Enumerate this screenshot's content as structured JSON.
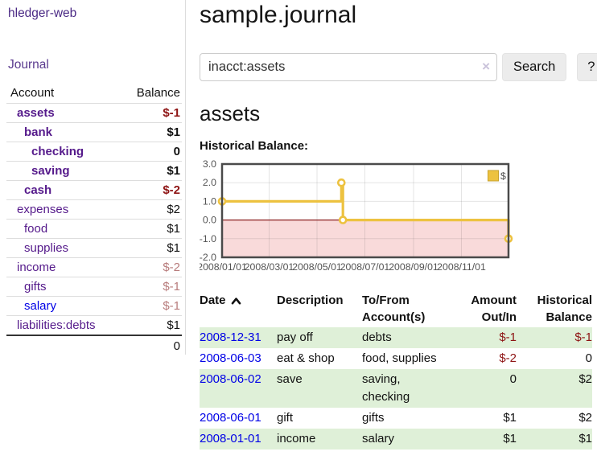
{
  "app": {
    "brand": "hledger-web"
  },
  "sidebar": {
    "journal_link": "Journal",
    "accounts": {
      "header_account": "Account",
      "header_balance": "Balance",
      "rows": [
        {
          "name": "assets",
          "indent": 0,
          "selected": true,
          "link_color": "purple",
          "balance": "$-1",
          "tone": "neg"
        },
        {
          "name": "bank",
          "indent": 1,
          "selected": true,
          "link_color": "purple",
          "balance": "$1",
          "tone": "pos"
        },
        {
          "name": "checking",
          "indent": 2,
          "selected": true,
          "link_color": "purple",
          "balance": "0",
          "tone": "pos"
        },
        {
          "name": "saving",
          "indent": 2,
          "selected": true,
          "link_color": "purple",
          "balance": "$1",
          "tone": "pos"
        },
        {
          "name": "cash",
          "indent": 1,
          "selected": true,
          "link_color": "purple",
          "balance": "$-2",
          "tone": "neg"
        },
        {
          "name": "expenses",
          "indent": 0,
          "selected": false,
          "link_color": "purple",
          "balance": "$2",
          "tone": "pos"
        },
        {
          "name": "food",
          "indent": 1,
          "selected": false,
          "link_color": "purple",
          "balance": "$1",
          "tone": "pos"
        },
        {
          "name": "supplies",
          "indent": 1,
          "selected": false,
          "link_color": "purple",
          "balance": "$1",
          "tone": "pos"
        },
        {
          "name": "income",
          "indent": 0,
          "selected": false,
          "link_color": "purple",
          "balance": "$-2",
          "tone": "neg-muted"
        },
        {
          "name": "gifts",
          "indent": 1,
          "selected": false,
          "link_color": "purple",
          "balance": "$-1",
          "tone": "neg-muted"
        },
        {
          "name": "salary",
          "indent": 1,
          "selected": false,
          "link_color": "blue",
          "balance": "$-1",
          "tone": "neg-muted"
        },
        {
          "name": "liabilities:debts",
          "indent": 0,
          "selected": false,
          "link_color": "purple",
          "balance": "$1",
          "tone": "pos"
        }
      ],
      "total": "0"
    }
  },
  "main": {
    "title": "sample.journal",
    "search": {
      "value": "inacct:assets",
      "clear_icon": "×",
      "search_button": "Search",
      "help_button": "?"
    },
    "account_heading": "assets",
    "chart_title": "Historical Balance:"
  },
  "chart_data": {
    "type": "line",
    "step": true,
    "title": "Historical Balance",
    "x_range": [
      "2008/01/01",
      "2008/12/31"
    ],
    "ylim": [
      -2,
      3
    ],
    "y_ticks": [
      3,
      2,
      1,
      0,
      -1,
      -2
    ],
    "x_ticks": [
      "2008/01/01",
      "2008/03/01",
      "2008/05/01",
      "2008/07/01",
      "2008/09/01",
      "2008/11/01"
    ],
    "series": [
      {
        "name": "$",
        "color": "#edc240",
        "points": [
          [
            "2008/01/01",
            1
          ],
          [
            "2008/06/01",
            2
          ],
          [
            "2008/06/03",
            0
          ],
          [
            "2008/12/31",
            -1
          ]
        ]
      }
    ],
    "grid": true,
    "legend_position": "top-right",
    "negative_region_color": "#f9dada",
    "zero_line_color": "#8e2323"
  },
  "register": {
    "headers": {
      "date": "Date",
      "description": "Description",
      "accounts": "To/From Account(s)",
      "amount": "Amount Out/In",
      "balance": "Historical Balance"
    },
    "rows": [
      {
        "date": "2008-12-31",
        "description": "pay off",
        "accounts": "debts",
        "amount": "$-1",
        "balance": "$-1"
      },
      {
        "date": "2008-06-03",
        "description": "eat & shop",
        "accounts": "food, supplies",
        "amount": "$-2",
        "balance": "0"
      },
      {
        "date": "2008-06-02",
        "description": "save",
        "accounts": "saving, checking",
        "amount": "0",
        "balance": "$2"
      },
      {
        "date": "2008-06-01",
        "description": "gift",
        "accounts": "gifts",
        "amount": "$1",
        "balance": "$2"
      },
      {
        "date": "2008-01-01",
        "description": "income",
        "accounts": "salary",
        "amount": "$1",
        "balance": "$1"
      }
    ]
  }
}
